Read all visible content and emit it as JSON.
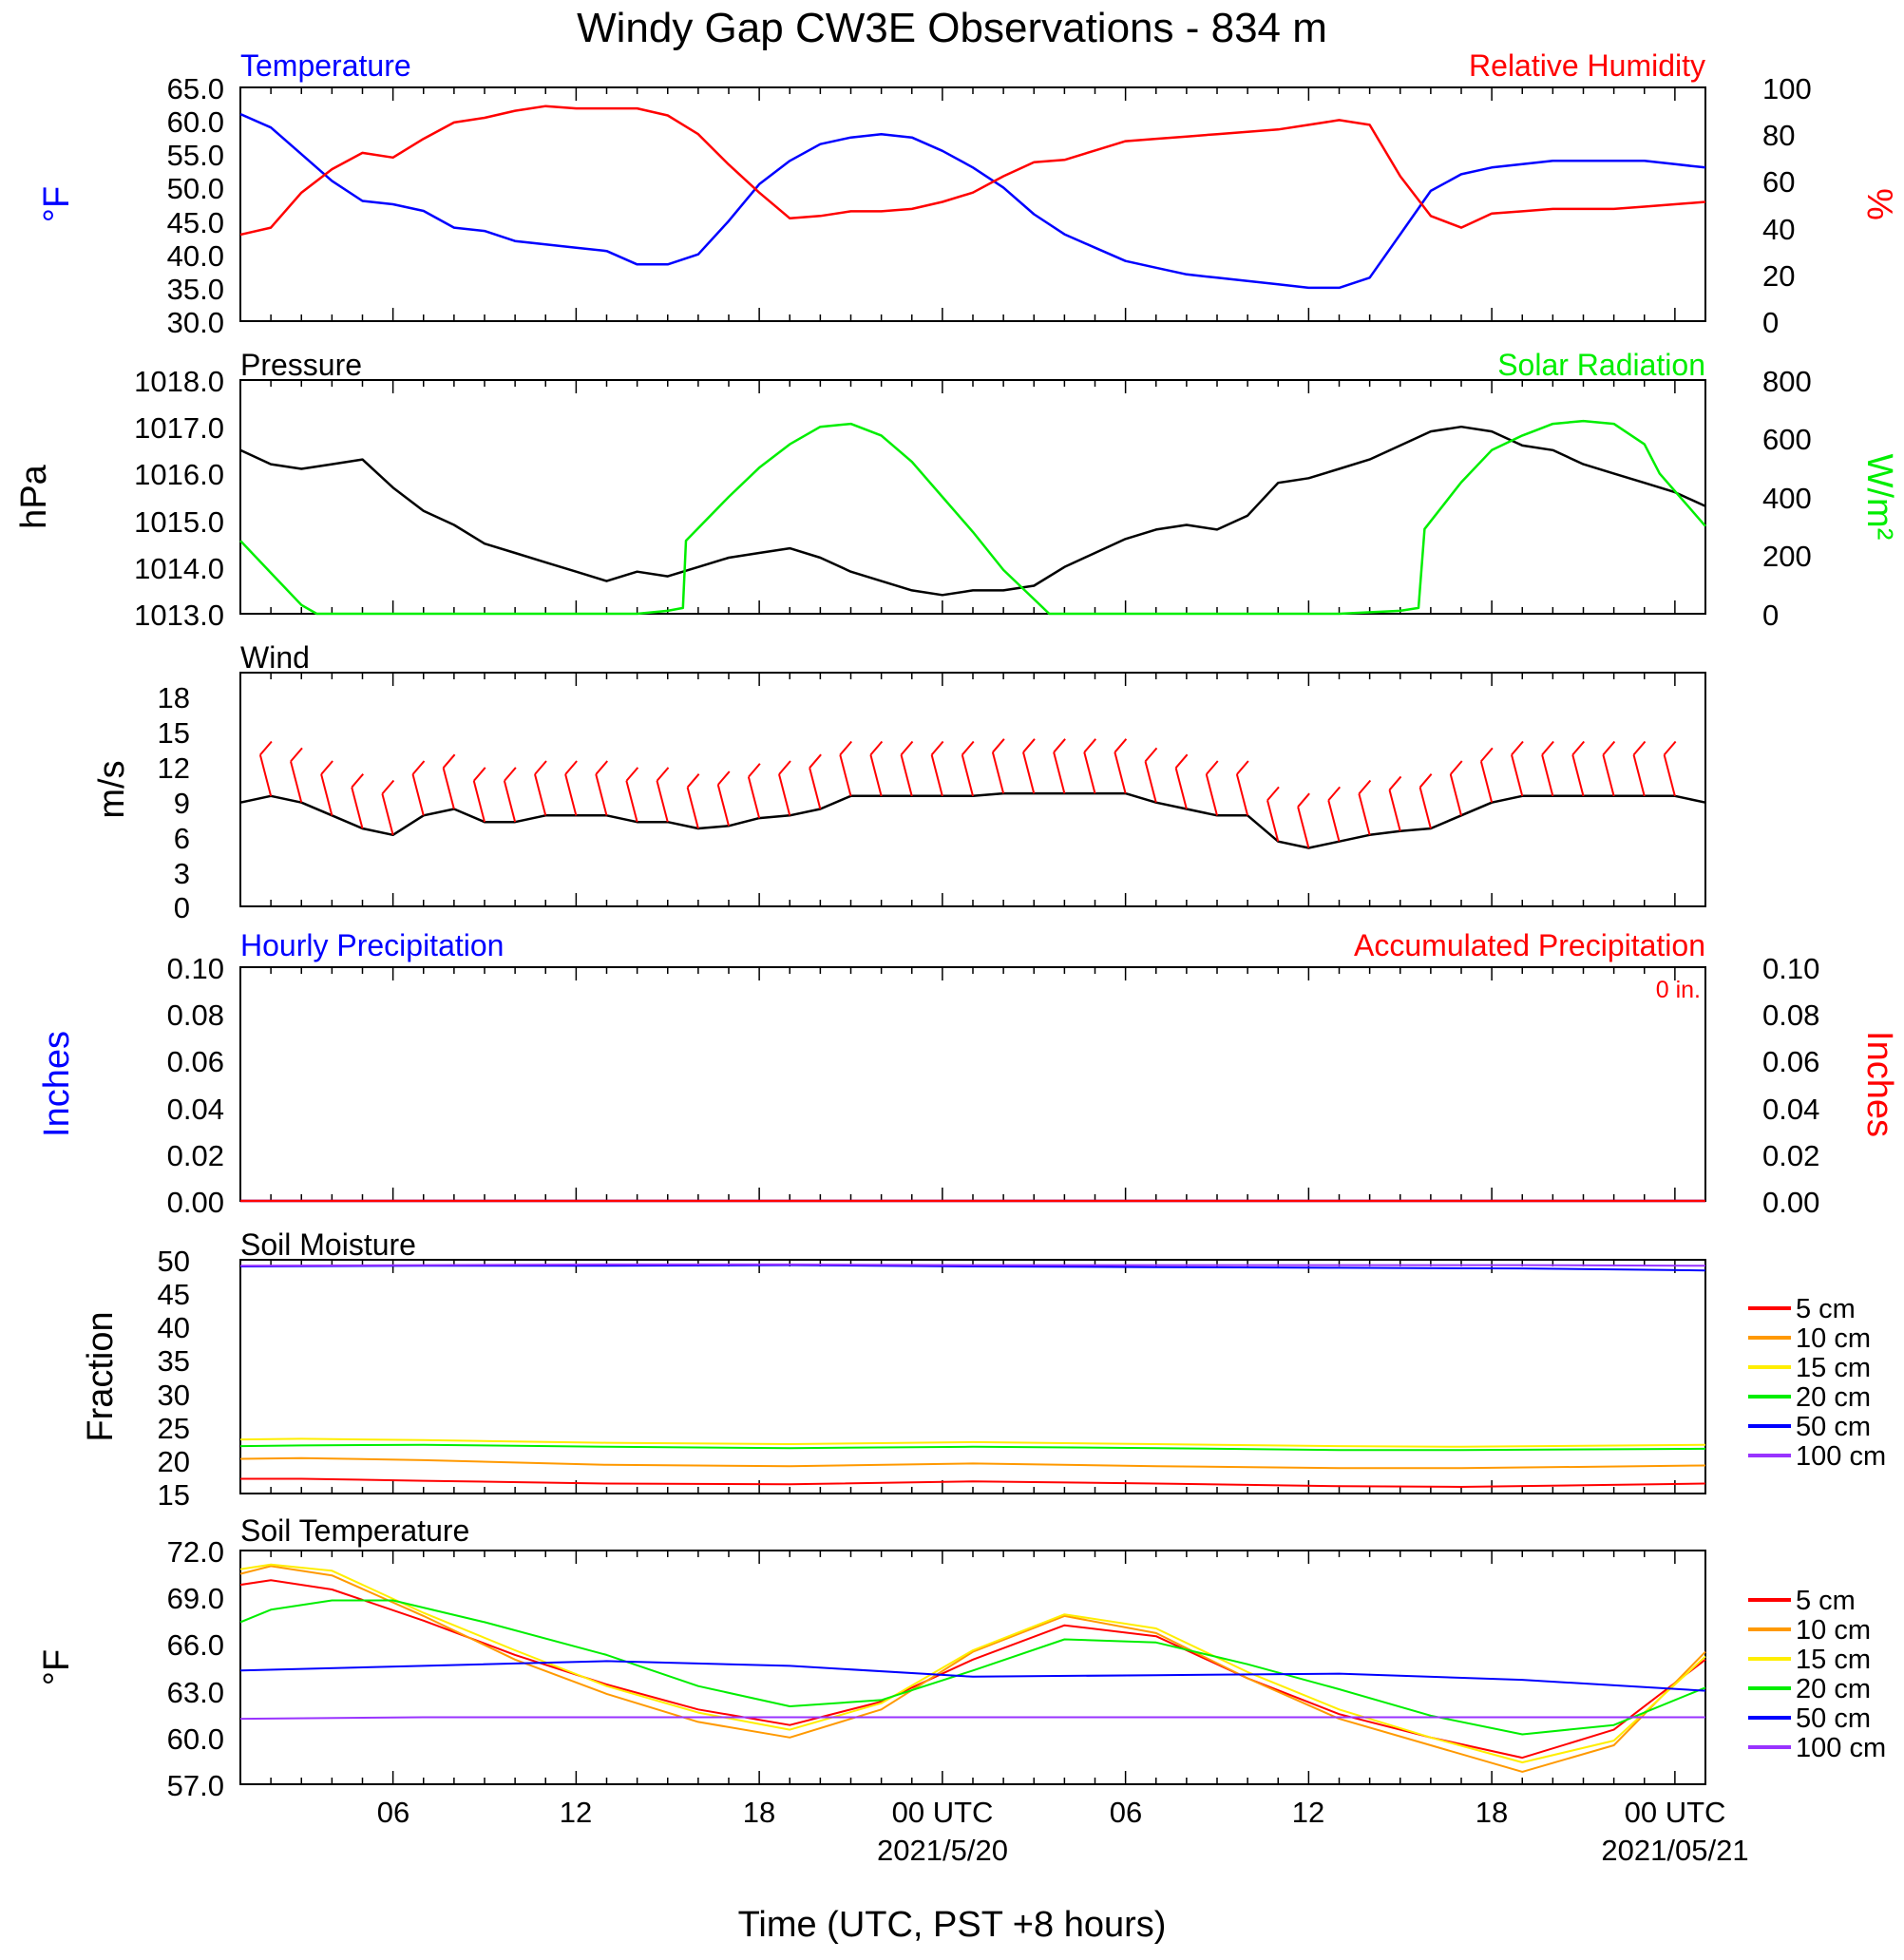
{
  "title": "Windy Gap CW3E Observations - 834 m",
  "xlabel": "Time (UTC, PST +8 hours)",
  "x_ticks": [
    "06",
    "12",
    "18",
    "00 UTC",
    "06",
    "12",
    "18",
    "00 UTC"
  ],
  "x_dates": [
    "2021/5/20",
    "2021/05/21"
  ],
  "colors": {
    "blue": "#0000ff",
    "red": "#ff0000",
    "green": "#00ee00",
    "black": "#000000",
    "orange": "#ff9900",
    "yellow": "#ffee00",
    "purple": "#9933ff"
  },
  "temperature_panel": {
    "left_title": "Temperature",
    "right_title": "Relative Humidity",
    "left_unit": "oF",
    "right_unit": "%",
    "left_ticks": [
      "65.0",
      "60.0",
      "55.0",
      "50.0",
      "45.0",
      "40.0",
      "35.0",
      "30.0"
    ],
    "right_ticks": [
      "100",
      "80",
      "60",
      "40",
      "20",
      "0"
    ]
  },
  "pressure_panel": {
    "left_title": "Pressure",
    "right_title": "Solar Radiation",
    "left_unit": "hPa",
    "right_unit": "W/m2",
    "left_ticks": [
      "1018.0",
      "1017.0",
      "1016.0",
      "1015.0",
      "1014.0",
      "1013.0"
    ],
    "right_ticks": [
      "800",
      "600",
      "400",
      "200",
      "0"
    ]
  },
  "wind_panel": {
    "left_title": "Wind",
    "left_unit": "m/s",
    "left_ticks": [
      "18",
      "15",
      "12",
      "9",
      "6",
      "3",
      "0"
    ]
  },
  "precip_panel": {
    "left_title": "Hourly Precipitation",
    "right_title": "Accumulated Precipitation",
    "total": "0 in.",
    "left_unit": "Inches",
    "right_unit": "Inches",
    "left_ticks": [
      "0.10",
      "0.08",
      "0.06",
      "0.04",
      "0.02",
      "0.00"
    ],
    "right_ticks": [
      "0.10",
      "0.08",
      "0.06",
      "0.04",
      "0.02",
      "0.00"
    ]
  },
  "soil_moisture_panel": {
    "left_title": "Soil Moisture",
    "left_unit": "Fraction",
    "left_ticks": [
      "50",
      "45",
      "40",
      "35",
      "30",
      "25",
      "20",
      "15"
    ],
    "legend": [
      "5 cm",
      "10 cm",
      "15 cm",
      "20 cm",
      "50 cm",
      "100 cm"
    ]
  },
  "soil_temp_panel": {
    "left_title": "Soil Temperature",
    "left_unit": "oF",
    "left_ticks": [
      "72.0",
      "69.0",
      "66.0",
      "63.0",
      "60.0",
      "57.0"
    ],
    "legend": [
      "5 cm",
      "10 cm",
      "15 cm",
      "20 cm",
      "50 cm",
      "100 cm"
    ]
  },
  "chart_data": [
    {
      "type": "line",
      "title": "Temperature / Relative Humidity",
      "x_unit": "hours since 2021-05-19 01:00 UTC",
      "xlim": [
        0,
        48
      ],
      "ylim": [
        30,
        65
      ],
      "y2lim": [
        0,
        100
      ],
      "series": [
        {
          "name": "Temperature",
          "axis": "left",
          "color": "blue",
          "x": [
            0,
            1,
            2,
            3,
            4,
            5,
            6,
            7,
            8,
            9,
            10,
            11,
            12,
            13,
            14,
            15,
            16,
            17,
            18,
            19,
            20,
            21,
            22,
            23,
            24,
            25,
            26,
            27,
            28,
            29,
            30,
            31,
            32,
            33,
            34,
            35,
            36,
            37,
            38,
            39,
            40,
            41,
            42,
            43,
            44,
            45,
            46,
            47,
            48
          ],
          "values": [
            61,
            59,
            55,
            51,
            48,
            47.5,
            46.5,
            44,
            43.5,
            42,
            41.5,
            41,
            40.5,
            38.5,
            38.5,
            40,
            45,
            50.5,
            54,
            56.5,
            57.5,
            58,
            57.5,
            55.5,
            53,
            50,
            46,
            43,
            41,
            39,
            38,
            37,
            36.5,
            36,
            35.5,
            35,
            35,
            36.5,
            43,
            49.5,
            52,
            53,
            53.5,
            54,
            54,
            54,
            54,
            53.5,
            53
          ]
        },
        {
          "name": "Relative Humidity",
          "axis": "right",
          "color": "red",
          "x": [
            0,
            1,
            2,
            3,
            4,
            5,
            6,
            7,
            8,
            9,
            10,
            11,
            12,
            13,
            14,
            15,
            16,
            17,
            18,
            19,
            20,
            21,
            22,
            23,
            24,
            25,
            26,
            27,
            28,
            29,
            30,
            31,
            32,
            33,
            34,
            35,
            36,
            37,
            38,
            39,
            40,
            41,
            42,
            43,
            44,
            45,
            46,
            47,
            48
          ],
          "values": [
            37,
            40,
            55,
            65,
            72,
            70,
            78,
            85,
            87,
            90,
            92,
            91,
            91,
            91,
            88,
            80,
            67,
            55,
            44,
            45,
            47,
            47,
            48,
            51,
            55,
            62,
            68,
            69,
            73,
            77,
            78,
            79,
            80,
            81,
            82,
            84,
            86,
            84,
            62,
            45,
            40,
            46,
            47,
            48,
            48,
            48,
            49,
            50,
            51
          ]
        }
      ]
    },
    {
      "type": "line",
      "title": "Pressure / Solar Radiation",
      "x_unit": "hours since 2021-05-19 01:00 UTC",
      "xlim": [
        0,
        48
      ],
      "ylim": [
        1013,
        1018
      ],
      "y2lim": [
        0,
        800
      ],
      "series": [
        {
          "name": "Pressure",
          "axis": "left",
          "color": "black",
          "x": [
            0,
            1,
            2,
            3,
            4,
            5,
            6,
            7,
            8,
            9,
            10,
            11,
            12,
            13,
            14,
            15,
            16,
            17,
            18,
            19,
            20,
            21,
            22,
            23,
            24,
            25,
            26,
            27,
            28,
            29,
            30,
            31,
            32,
            33,
            34,
            35,
            36,
            37,
            38,
            39,
            40,
            41,
            42,
            43,
            44,
            45,
            46,
            47,
            48
          ],
          "values": [
            1016.5,
            1016.2,
            1016.1,
            1016.2,
            1016.3,
            1015.7,
            1015.2,
            1014.9,
            1014.5,
            1014.3,
            1014.1,
            1013.9,
            1013.7,
            1013.9,
            1013.8,
            1014,
            1014.2,
            1014.3,
            1014.4,
            1014.2,
            1013.9,
            1013.7,
            1013.5,
            1013.4,
            1013.5,
            1013.5,
            1013.6,
            1014,
            1014.3,
            1014.6,
            1014.8,
            1014.9,
            1014.8,
            1015.1,
            1015.8,
            1015.9,
            1016.1,
            1016.3,
            1016.6,
            1016.9,
            1017,
            1016.9,
            1016.6,
            1016.5,
            1016.2,
            1016,
            1015.8,
            1015.6,
            1015.3
          ]
        },
        {
          "name": "Solar Radiation",
          "axis": "right",
          "color": "green",
          "x": [
            0,
            1,
            2,
            2.5,
            6,
            10,
            13,
            14,
            14.5,
            14.6,
            16,
            17,
            18,
            19,
            20,
            21,
            22,
            23,
            24,
            25,
            26,
            26.5,
            28,
            32,
            36,
            38,
            38.6,
            38.8,
            40,
            41,
            42,
            42.5,
            43,
            44,
            45,
            46,
            46.5,
            47,
            48
          ],
          "values": [
            250,
            140,
            30,
            0,
            0,
            0,
            0,
            10,
            20,
            250,
            400,
            500,
            580,
            640,
            650,
            610,
            520,
            400,
            280,
            150,
            50,
            0,
            0,
            0,
            0,
            10,
            20,
            290,
            450,
            560,
            610,
            630,
            650,
            660,
            650,
            580,
            480,
            420,
            300
          ]
        }
      ]
    },
    {
      "type": "line",
      "title": "Wind",
      "x_unit": "hours since 2021-05-19 01:00 UTC",
      "xlim": [
        0,
        48
      ],
      "ylim": [
        0,
        18
      ],
      "series": [
        {
          "name": "Wind speed",
          "color": "black",
          "x": [
            0,
            1,
            2,
            3,
            4,
            5,
            6,
            7,
            8,
            9,
            10,
            11,
            12,
            13,
            14,
            15,
            16,
            17,
            18,
            19,
            20,
            21,
            22,
            23,
            24,
            25,
            26,
            27,
            28,
            29,
            30,
            31,
            32,
            33,
            34,
            35,
            36,
            37,
            38,
            39,
            40,
            41,
            42,
            43,
            44,
            45,
            46,
            47,
            48
          ],
          "values": [
            8,
            8.5,
            8,
            7,
            6,
            5.5,
            7,
            7.5,
            6.5,
            6.5,
            7,
            7,
            7,
            6.5,
            6.5,
            6,
            6.2,
            6.8,
            7,
            7.5,
            8.5,
            8.5,
            8.5,
            8.5,
            8.5,
            8.7,
            8.7,
            8.7,
            8.7,
            8.7,
            8,
            7.5,
            7,
            7,
            5,
            4.5,
            5,
            5.5,
            5.8,
            6,
            7,
            8,
            8.5,
            8.5,
            8.5,
            8.5,
            8.5,
            8.5,
            8
          ]
        }
      ]
    },
    {
      "type": "line",
      "title": "Hourly / Accumulated Precipitation",
      "x_unit": "hours since 2021-05-19 01:00 UTC",
      "xlim": [
        0,
        48
      ],
      "ylim": [
        0,
        0.1
      ],
      "y2lim": [
        0,
        0.1
      ],
      "series": [
        {
          "name": "Hourly Precipitation",
          "color": "blue",
          "x": [
            0,
            48
          ],
          "values": [
            0,
            0
          ]
        },
        {
          "name": "Accumulated Precipitation",
          "color": "red",
          "x": [
            0,
            48
          ],
          "values": [
            0,
            0
          ]
        }
      ]
    },
    {
      "type": "line",
      "title": "Soil Moisture",
      "x_unit": "hours since 2021-05-19 01:00 UTC",
      "xlim": [
        0,
        48
      ],
      "ylim": [
        15,
        50
      ],
      "series": [
        {
          "name": "5 cm",
          "color": "red",
          "x": [
            0,
            2,
            6,
            12,
            18,
            24,
            30,
            36,
            40,
            48
          ],
          "values": [
            17.2,
            17.2,
            16.9,
            16.5,
            16.4,
            16.8,
            16.5,
            16.1,
            16,
            16.5
          ]
        },
        {
          "name": "10 cm",
          "color": "orange",
          "x": [
            0,
            2,
            6,
            12,
            18,
            24,
            30,
            36,
            40,
            48
          ],
          "values": [
            20.2,
            20.3,
            20,
            19.3,
            19.1,
            19.5,
            19.1,
            18.8,
            18.8,
            19.2
          ]
        },
        {
          "name": "15 cm",
          "color": "yellow",
          "x": [
            0,
            2,
            6,
            12,
            18,
            24,
            30,
            36,
            40,
            48
          ],
          "values": [
            23.1,
            23.2,
            23,
            22.6,
            22.4,
            22.7,
            22.4,
            22.1,
            22,
            22.3
          ]
        },
        {
          "name": "20 cm",
          "color": "green",
          "x": [
            0,
            2,
            6,
            12,
            18,
            24,
            30,
            36,
            40,
            48
          ],
          "values": [
            22.1,
            22.2,
            22.3,
            22,
            21.8,
            22,
            21.8,
            21.5,
            21.5,
            21.7
          ]
        },
        {
          "name": "50 cm",
          "color": "blue",
          "x": [
            0,
            6,
            12,
            18,
            24,
            30,
            36,
            42,
            48
          ],
          "values": [
            49,
            49.1,
            49.1,
            49.2,
            49,
            48.9,
            48.8,
            48.7,
            48.4
          ]
        },
        {
          "name": "100 cm",
          "color": "purple",
          "x": [
            0,
            6,
            12,
            18,
            24,
            30,
            36,
            42,
            48
          ],
          "values": [
            49.1,
            49.2,
            49.3,
            49.3,
            49.2,
            49.2,
            49.2,
            49.2,
            49.1
          ]
        }
      ]
    },
    {
      "type": "line",
      "title": "Soil Temperature",
      "x_unit": "hours since 2021-05-19 01:00 UTC",
      "xlim": [
        0,
        48
      ],
      "ylim": [
        57,
        72
      ],
      "series": [
        {
          "name": "5 cm",
          "color": "red",
          "x": [
            0,
            1,
            3,
            6,
            9,
            12,
            15,
            18,
            21,
            24,
            27,
            30,
            33,
            36,
            39,
            42,
            45,
            48
          ],
          "values": [
            69.8,
            70.1,
            69.5,
            67.5,
            65.3,
            63.4,
            61.8,
            60.8,
            62.3,
            65,
            67.2,
            66.5,
            63.8,
            61.5,
            60,
            58.7,
            60.5,
            65
          ]
        },
        {
          "name": "10 cm",
          "color": "orange",
          "x": [
            0,
            1,
            3,
            6,
            9,
            12,
            15,
            18,
            21,
            24,
            27,
            30,
            33,
            36,
            39,
            42,
            45,
            48
          ],
          "values": [
            70.5,
            71,
            70.4,
            67.8,
            65,
            62.8,
            61,
            60,
            61.8,
            65.5,
            67.8,
            66.7,
            63.8,
            61.2,
            59.5,
            57.8,
            59.5,
            65.5
          ]
        },
        {
          "name": "15 cm",
          "color": "yellow",
          "x": [
            0,
            1,
            3,
            6,
            9,
            12,
            15,
            18,
            21,
            24,
            27,
            30,
            33,
            36,
            39,
            42,
            45,
            48
          ],
          "values": [
            70.8,
            71.1,
            70.7,
            68,
            65.6,
            63.3,
            61.6,
            60.5,
            62.2,
            65.6,
            67.9,
            67,
            64.2,
            61.8,
            60,
            58.4,
            59.8,
            65.2
          ]
        },
        {
          "name": "20 cm",
          "color": "green",
          "x": [
            0,
            1,
            3,
            5,
            8,
            12,
            15,
            18,
            21,
            24,
            27,
            30,
            33,
            36,
            39,
            42,
            45,
            48
          ],
          "values": [
            67.4,
            68.2,
            68.8,
            68.8,
            67.4,
            65.3,
            63.3,
            62,
            62.4,
            64.3,
            66.3,
            66.1,
            64.7,
            63.1,
            61.4,
            60.2,
            60.8,
            63.2
          ]
        },
        {
          "name": "50 cm",
          "color": "blue",
          "x": [
            0,
            6,
            12,
            18,
            24,
            30,
            36,
            42,
            48
          ],
          "values": [
            64.3,
            64.6,
            64.9,
            64.6,
            63.9,
            64,
            64.1,
            63.7,
            63
          ]
        },
        {
          "name": "100 cm",
          "color": "purple",
          "x": [
            0,
            6,
            12,
            18,
            24,
            30,
            36,
            42,
            48
          ],
          "values": [
            61.2,
            61.3,
            61.3,
            61.3,
            61.3,
            61.3,
            61.3,
            61.3,
            61.3
          ]
        }
      ]
    }
  ]
}
